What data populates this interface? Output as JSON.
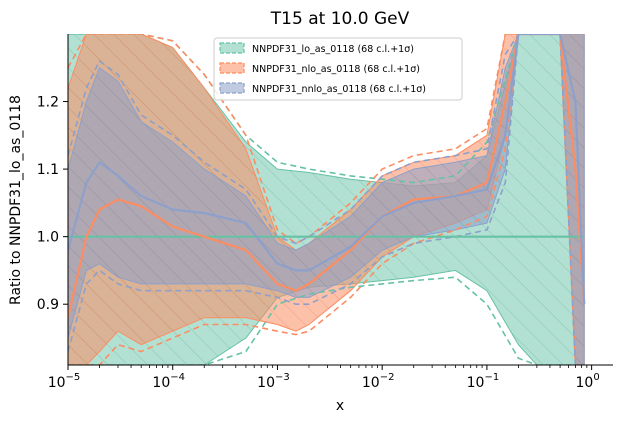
{
  "chart_data": {
    "type": "line",
    "title": "T15 at 10.0 GeV",
    "xlabel": "x",
    "ylabel": "Ratio to NNPDF31_lo_as_0118",
    "x_scale": "log",
    "xlim": [
      1e-05,
      1.6
    ],
    "ylim": [
      0.81,
      1.3
    ],
    "x_ticks": [
      {
        "value": 1e-05,
        "base": "10",
        "exp": "−5"
      },
      {
        "value": 0.0001,
        "base": "10",
        "exp": "−4"
      },
      {
        "value": 0.001,
        "base": "10",
        "exp": "−3"
      },
      {
        "value": 0.01,
        "base": "10",
        "exp": "−2"
      },
      {
        "value": 0.1,
        "base": "10",
        "exp": "−1"
      },
      {
        "value": 1,
        "base": "10",
        "exp": "0"
      }
    ],
    "y_ticks": [
      {
        "value": 0.9,
        "label": "0.9"
      },
      {
        "value": 1.0,
        "label": "1.0"
      },
      {
        "value": 1.1,
        "label": "1.1"
      },
      {
        "value": 1.2,
        "label": "1.2"
      }
    ],
    "grid": false,
    "legend_position": "top-center",
    "series": [
      {
        "name": "NNPDF31_lo_as_0118 (68 c.l.+1σ)",
        "color": "#66c2a5",
        "x": [
          1e-05,
          2e-05,
          5e-05,
          0.0001,
          0.0002,
          0.0005,
          0.001,
          0.002,
          0.005,
          0.01,
          0.02,
          0.05,
          0.1,
          0.2,
          0.3,
          0.5,
          0.7,
          0.85
        ],
        "central": [
          1.0,
          1.0,
          1.0,
          1.0,
          1.0,
          1.0,
          1.0,
          1.0,
          1.0,
          1.0,
          1.0,
          1.0,
          1.0,
          1.0,
          1.0,
          1.0,
          1.0,
          1.0
        ],
        "upper": [
          1.3,
          1.3,
          1.3,
          1.28,
          1.22,
          1.14,
          1.1,
          1.095,
          1.085,
          1.08,
          1.075,
          1.08,
          1.12,
          1.3,
          1.3,
          1.3,
          1.3,
          1.3
        ],
        "lower": [
          0.81,
          0.81,
          0.81,
          0.81,
          0.81,
          0.85,
          0.91,
          0.925,
          0.93,
          0.935,
          0.94,
          0.95,
          0.92,
          0.84,
          0.81,
          0.81,
          0.81,
          0.81
        ],
        "upper_1sigma": [
          1.3,
          1.3,
          1.3,
          1.29,
          1.24,
          1.15,
          1.11,
          1.1,
          1.09,
          1.085,
          1.08,
          1.09,
          1.14,
          1.3,
          1.3,
          1.3,
          1.3,
          1.3
        ],
        "lower_1sigma": [
          0.81,
          0.81,
          0.81,
          0.81,
          0.81,
          0.83,
          0.9,
          0.915,
          0.925,
          0.93,
          0.935,
          0.94,
          0.9,
          0.82,
          0.81,
          0.81,
          0.81,
          0.81
        ]
      },
      {
        "name": "NNPDF31_nlo_as_0118 (68 c.l.+1σ)",
        "color": "#fc8d62",
        "x": [
          1e-05,
          1.5e-05,
          2e-05,
          3e-05,
          5e-05,
          0.0001,
          0.0002,
          0.0005,
          0.001,
          0.0015,
          0.002,
          0.005,
          0.01,
          0.02,
          0.05,
          0.1,
          0.15,
          0.2,
          0.3,
          0.5,
          0.7,
          0.85
        ],
        "central": [
          0.88,
          1.0,
          1.04,
          1.055,
          1.045,
          1.015,
          1.0,
          0.98,
          0.93,
          0.92,
          0.93,
          0.98,
          1.03,
          1.055,
          1.06,
          1.08,
          1.2,
          1.3,
          1.3,
          1.3,
          1.1,
          0.9
        ],
        "upper": [
          1.22,
          1.3,
          1.3,
          1.3,
          1.3,
          1.28,
          1.22,
          1.13,
          1.0,
          0.98,
          0.99,
          1.04,
          1.09,
          1.11,
          1.12,
          1.15,
          1.3,
          1.3,
          1.3,
          1.3,
          1.3,
          1.3
        ],
        "lower": [
          0.81,
          0.81,
          0.83,
          0.86,
          0.84,
          0.86,
          0.88,
          0.88,
          0.87,
          0.86,
          0.87,
          0.92,
          0.97,
          1.0,
          1.02,
          1.04,
          1.15,
          1.3,
          1.3,
          1.3,
          0.81,
          0.81
        ],
        "upper_1sigma": [
          1.25,
          1.3,
          1.3,
          1.3,
          1.3,
          1.29,
          1.24,
          1.15,
          1.01,
          0.99,
          1.0,
          1.05,
          1.1,
          1.12,
          1.13,
          1.16,
          1.3,
          1.3,
          1.3,
          1.3,
          1.3,
          1.3
        ],
        "lower_1sigma": [
          0.81,
          0.81,
          0.81,
          0.84,
          0.83,
          0.85,
          0.87,
          0.87,
          0.86,
          0.855,
          0.86,
          0.91,
          0.96,
          0.99,
          1.01,
          1.03,
          1.13,
          1.3,
          1.3,
          1.3,
          0.81,
          0.81
        ]
      },
      {
        "name": "NNPDF31_nnlo_as_0118 (68 c.l.+1σ)",
        "color": "#8da0cb",
        "x": [
          1e-05,
          1.5e-05,
          2e-05,
          3e-05,
          5e-05,
          0.0001,
          0.0002,
          0.0005,
          0.001,
          0.0015,
          0.002,
          0.005,
          0.01,
          0.02,
          0.05,
          0.1,
          0.15,
          0.2,
          0.3,
          0.5,
          0.7,
          0.85
        ],
        "central": [
          0.98,
          1.08,
          1.11,
          1.09,
          1.06,
          1.04,
          1.035,
          1.02,
          0.96,
          0.95,
          0.95,
          0.985,
          1.03,
          1.05,
          1.06,
          1.07,
          1.15,
          1.3,
          1.3,
          1.3,
          1.2,
          0.9
        ],
        "upper": [
          1.1,
          1.2,
          1.25,
          1.23,
          1.17,
          1.14,
          1.1,
          1.06,
          0.99,
          0.98,
          0.99,
          1.03,
          1.08,
          1.1,
          1.11,
          1.12,
          1.25,
          1.3,
          1.3,
          1.3,
          1.3,
          1.3
        ],
        "lower": [
          0.85,
          0.95,
          0.96,
          0.94,
          0.93,
          0.93,
          0.93,
          0.93,
          0.92,
          0.91,
          0.91,
          0.94,
          0.98,
          1.0,
          1.01,
          1.02,
          1.1,
          1.3,
          1.3,
          1.3,
          0.81,
          0.81
        ],
        "upper_1sigma": [
          1.12,
          1.22,
          1.26,
          1.24,
          1.18,
          1.15,
          1.11,
          1.07,
          1.0,
          0.99,
          1.0,
          1.04,
          1.09,
          1.11,
          1.12,
          1.13,
          1.27,
          1.3,
          1.3,
          1.3,
          1.3,
          1.3
        ],
        "lower_1sigma": [
          0.83,
          0.93,
          0.95,
          0.93,
          0.92,
          0.92,
          0.92,
          0.92,
          0.91,
          0.9,
          0.9,
          0.93,
          0.97,
          0.99,
          1.0,
          1.01,
          1.08,
          1.3,
          1.3,
          1.3,
          0.81,
          0.81
        ]
      }
    ]
  }
}
